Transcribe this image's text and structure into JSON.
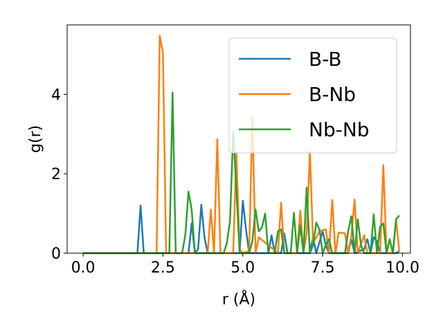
{
  "chart_data": {
    "type": "line",
    "xlabel": "r (Å)",
    "ylabel": "g(r)",
    "xlim": [
      -0.5,
      10.25
    ],
    "ylim": [
      0,
      5.75
    ],
    "xticks": [
      0.0,
      2.5,
      5.0,
      7.5,
      10.0
    ],
    "xtick_labels": [
      "0.0",
      "2.5",
      "5.0",
      "7.5",
      "10.0"
    ],
    "yticks": [
      0,
      2,
      4
    ],
    "ytick_labels": [
      "0",
      "2",
      "4"
    ],
    "grid": false,
    "legend_position": "top-right",
    "series": [
      {
        "name": "B-B",
        "color": "#1f77b4",
        "points": [
          [
            0,
            0
          ],
          [
            1.7,
            0
          ],
          [
            1.8,
            1.2
          ],
          [
            1.9,
            0
          ],
          [
            3.3,
            0
          ],
          [
            3.4,
            0.75
          ],
          [
            3.5,
            0
          ],
          [
            3.6,
            0.1
          ],
          [
            3.7,
            1.22
          ],
          [
            3.8,
            0.4
          ],
          [
            3.9,
            0
          ],
          [
            4.9,
            0
          ],
          [
            5.0,
            1.32
          ],
          [
            5.1,
            0.6
          ],
          [
            5.2,
            0
          ],
          [
            5.8,
            0
          ],
          [
            5.9,
            0.45
          ],
          [
            6.0,
            0
          ],
          [
            6.2,
            0
          ],
          [
            6.3,
            0.5
          ],
          [
            6.4,
            0
          ],
          [
            7.1,
            0
          ],
          [
            7.2,
            0.4
          ],
          [
            7.3,
            0
          ],
          [
            7.5,
            0.55
          ],
          [
            7.6,
            0.2
          ],
          [
            7.7,
            0
          ],
          [
            8.3,
            0
          ],
          [
            8.4,
            0.35
          ],
          [
            8.5,
            0
          ],
          [
            8.8,
            0.1
          ],
          [
            8.9,
            0.35
          ],
          [
            9.0,
            0
          ],
          [
            9.1,
            0.4
          ],
          [
            9.2,
            0.3
          ],
          [
            9.3,
            0
          ],
          [
            9.8,
            0
          ],
          [
            9.9,
            0.05
          ]
        ]
      },
      {
        "name": "B-Nb",
        "color": "#ff7f0e",
        "points": [
          [
            0,
            0
          ],
          [
            2.3,
            0
          ],
          [
            2.4,
            5.48
          ],
          [
            2.5,
            5.05
          ],
          [
            2.6,
            0
          ],
          [
            3.9,
            0
          ],
          [
            4.0,
            1.1
          ],
          [
            4.1,
            0
          ],
          [
            4.2,
            2.87
          ],
          [
            4.3,
            0
          ],
          [
            4.7,
            0
          ],
          [
            4.8,
            2.52
          ],
          [
            4.9,
            0.1
          ],
          [
            5.0,
            0
          ],
          [
            5.2,
            0.05
          ],
          [
            5.3,
            3.45
          ],
          [
            5.4,
            0
          ],
          [
            5.5,
            0.4
          ],
          [
            6.1,
            0
          ],
          [
            6.2,
            1.27
          ],
          [
            6.3,
            0
          ],
          [
            6.7,
            0
          ],
          [
            6.8,
            1.07
          ],
          [
            6.9,
            0
          ],
          [
            7.0,
            0.5
          ],
          [
            7.1,
            2.57
          ],
          [
            7.2,
            0.25
          ],
          [
            7.4,
            0.55
          ],
          [
            7.6,
            0.6
          ],
          [
            7.7,
            0
          ],
          [
            7.8,
            1.34
          ],
          [
            7.9,
            0
          ],
          [
            8.0,
            0.52
          ],
          [
            8.2,
            0.5
          ],
          [
            8.3,
            0
          ],
          [
            8.4,
            0.45
          ],
          [
            8.5,
            1.35
          ],
          [
            8.6,
            0
          ],
          [
            8.8,
            0.45
          ],
          [
            8.9,
            0
          ],
          [
            9.3,
            0
          ],
          [
            9.4,
            2.22
          ],
          [
            9.5,
            0
          ],
          [
            9.7,
            0
          ],
          [
            9.8,
            0.85
          ],
          [
            9.9,
            0.05
          ]
        ]
      },
      {
        "name": "Nb-Nb",
        "color": "#2ca02c",
        "points": [
          [
            0,
            0
          ],
          [
            2.7,
            0
          ],
          [
            2.8,
            4.05
          ],
          [
            2.9,
            0
          ],
          [
            3.1,
            0
          ],
          [
            3.2,
            0.45
          ],
          [
            3.3,
            1.55
          ],
          [
            3.4,
            1.1
          ],
          [
            3.5,
            0
          ],
          [
            4.4,
            0
          ],
          [
            4.5,
            0.25
          ],
          [
            4.6,
            0.8
          ],
          [
            4.7,
            3.05
          ],
          [
            4.8,
            1.6
          ],
          [
            4.9,
            0
          ],
          [
            5.2,
            0
          ],
          [
            5.3,
            0.3
          ],
          [
            5.4,
            1.1
          ],
          [
            5.5,
            0.55
          ],
          [
            5.6,
            0.65
          ],
          [
            5.7,
            1.0
          ],
          [
            5.8,
            0
          ],
          [
            6.0,
            0
          ],
          [
            6.1,
            0.55
          ],
          [
            6.2,
            0.6
          ],
          [
            6.3,
            0
          ],
          [
            6.5,
            0
          ],
          [
            6.6,
            1.02
          ],
          [
            6.7,
            0
          ],
          [
            6.8,
            0.7
          ],
          [
            6.9,
            0
          ],
          [
            7.0,
            1.65
          ],
          [
            7.1,
            0
          ],
          [
            7.2,
            0.2
          ],
          [
            7.3,
            0.77
          ],
          [
            7.4,
            0.6
          ],
          [
            7.5,
            0
          ],
          [
            7.6,
            0.2
          ],
          [
            7.7,
            0.35
          ],
          [
            7.8,
            0
          ],
          [
            8.2,
            0
          ],
          [
            8.3,
            0.55
          ],
          [
            8.4,
            0.93
          ],
          [
            8.5,
            0
          ],
          [
            8.6,
            0.85
          ],
          [
            8.7,
            0.2
          ],
          [
            8.8,
            0
          ],
          [
            9.0,
            0
          ],
          [
            9.1,
            0.98
          ],
          [
            9.2,
            0
          ],
          [
            9.3,
            0.67
          ],
          [
            9.4,
            0.75
          ],
          [
            9.5,
            0
          ],
          [
            9.6,
            0.35
          ],
          [
            9.7,
            0
          ],
          [
            9.8,
            0.85
          ],
          [
            9.9,
            0.95
          ]
        ]
      }
    ]
  }
}
